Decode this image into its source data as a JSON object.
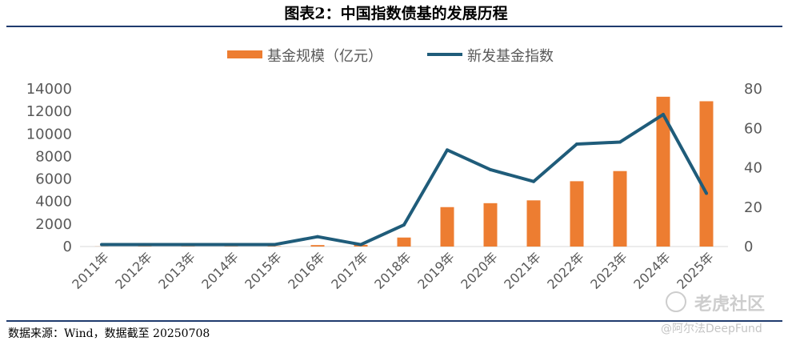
{
  "figure": {
    "title": "图表2：中国指数债基的发展历程",
    "source": "数据来源：Wind，数据截至 20250708",
    "watermark": "老虎社区",
    "watermark_sub": "@阿尔法DeepFund"
  },
  "colors": {
    "bar": "#ED7D31",
    "line": "#1F5C7A",
    "axis": "#D9D9D9",
    "text": "#595959",
    "rule": "#1F3B6E"
  },
  "chart_data": {
    "type": "bar",
    "categories": [
      "2011年",
      "2012年",
      "2013年",
      "2014年",
      "2015年",
      "2016年",
      "2017年",
      "2018年",
      "2019年",
      "2020年",
      "2021年",
      "2022年",
      "2023年",
      "2024年",
      "2025年"
    ],
    "series": [
      {
        "name": "基金规模（亿元）",
        "type": "bar",
        "axis": "left",
        "values": [
          10,
          20,
          20,
          20,
          30,
          130,
          150,
          800,
          3500,
          3850,
          4100,
          5800,
          6700,
          13300,
          12900
        ]
      },
      {
        "name": "新发基金指数",
        "type": "line",
        "axis": "right",
        "values": [
          1,
          1,
          1,
          1,
          1,
          5,
          1,
          11,
          49,
          39,
          33,
          52,
          53,
          67,
          27
        ]
      }
    ],
    "y_left": {
      "min": 0,
      "max": 14000,
      "ticks": [
        0,
        2000,
        4000,
        6000,
        8000,
        10000,
        12000,
        14000
      ]
    },
    "y_right": {
      "min": 0,
      "max": 80,
      "ticks": [
        0,
        20,
        40,
        60,
        80
      ]
    },
    "legend": "top-center",
    "grid": false
  }
}
